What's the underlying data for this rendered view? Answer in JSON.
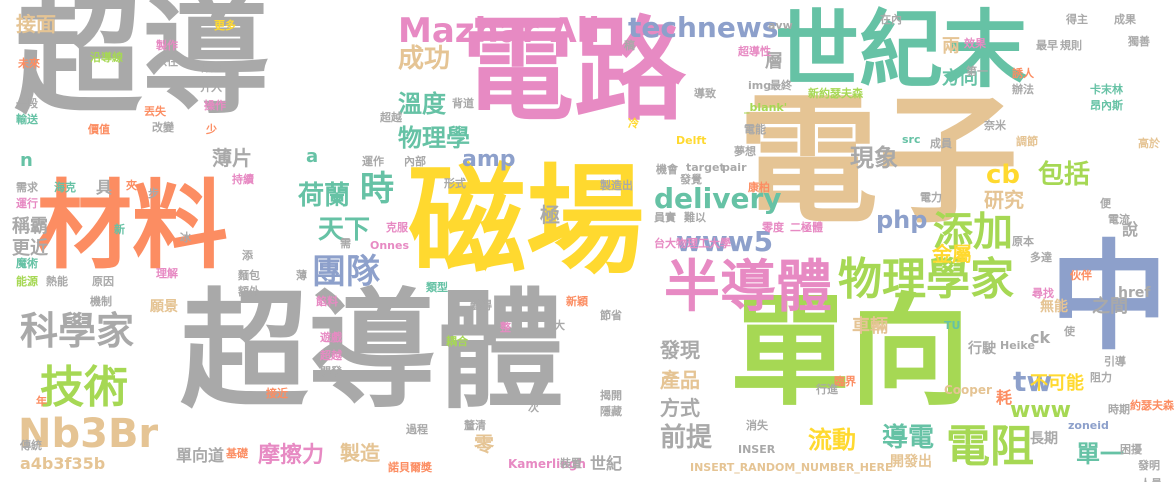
{
  "palette": {
    "gray": "#a9a9a9",
    "pink": "#e78ac3",
    "green": "#66c2a5",
    "lime": "#a6d854",
    "orange": "#fc8d62",
    "yellow": "#ffd92f",
    "tan": "#e5c494",
    "blue": "#8da0cb"
  },
  "words": [
    {
      "text": "超導",
      "color": "gray"
    },
    {
      "text": "電路",
      "color": "pink"
    },
    {
      "text": "世紀末",
      "color": "green"
    },
    {
      "text": "電子",
      "color": "tan"
    },
    {
      "text": "材料",
      "color": "orange"
    },
    {
      "text": "磁場",
      "color": "yellow"
    },
    {
      "text": "超導體",
      "color": "gray"
    },
    {
      "text": "單向",
      "color": "lime"
    },
    {
      "text": "中",
      "color": "blue"
    },
    {
      "text": "半導體",
      "color": "pink"
    },
    {
      "text": "物理學家",
      "color": "lime"
    },
    {
      "text": "Mazhar Ali",
      "color": "pink"
    },
    {
      "text": "technews",
      "color": "blue"
    },
    {
      "text": "科學家",
      "color": "gray"
    },
    {
      "text": "技術",
      "color": "lime"
    },
    {
      "text": "Nb3Br",
      "color": "tan"
    },
    {
      "text": "團隊",
      "color": "blue"
    },
    {
      "text": "添加",
      "color": "lime"
    },
    {
      "text": "電阻",
      "color": "lime"
    },
    {
      "text": "時",
      "color": "green"
    },
    {
      "text": "delivery",
      "color": "green"
    },
    {
      "text": "amp",
      "color": "blue"
    },
    {
      "text": "www5",
      "color": "blue"
    },
    {
      "text": "php",
      "color": "blue"
    },
    {
      "text": "www",
      "color": "lime"
    },
    {
      "text": "天下",
      "color": "green"
    },
    {
      "text": "荷蘭",
      "color": "green"
    },
    {
      "text": "成功",
      "color": "tan"
    },
    {
      "text": "溫度",
      "color": "green"
    },
    {
      "text": "物理學",
      "color": "green"
    },
    {
      "text": "現象",
      "color": "gray"
    },
    {
      "text": "cb",
      "color": "yellow"
    },
    {
      "text": "包括",
      "color": "lime"
    },
    {
      "text": "研究",
      "color": "tan"
    },
    {
      "text": "金屬",
      "color": "yellow"
    },
    {
      "text": "tw",
      "color": "blue"
    },
    {
      "text": "導電",
      "color": "green"
    },
    {
      "text": "單一",
      "color": "green"
    },
    {
      "text": "流動",
      "color": "yellow"
    },
    {
      "text": "前提",
      "color": "gray"
    },
    {
      "text": "摩擦力",
      "color": "pink"
    },
    {
      "text": "產品",
      "color": "tan"
    },
    {
      "text": "方式",
      "color": "gray"
    },
    {
      "text": "發現",
      "color": "gray"
    },
    {
      "text": "薄片",
      "color": "gray"
    },
    {
      "text": "接面",
      "color": "tan"
    },
    {
      "text": "方向",
      "color": "green"
    },
    {
      "text": "兩",
      "color": "tan"
    },
    {
      "text": "層",
      "color": "gray"
    },
    {
      "text": "極",
      "color": "gray"
    },
    {
      "text": "製造",
      "color": "tan"
    },
    {
      "text": "零",
      "color": "tan"
    },
    {
      "text": "世紀",
      "color": "gray"
    },
    {
      "text": "a4b3f35b",
      "color": "tan"
    },
    {
      "text": "單向道",
      "color": "gray"
    },
    {
      "text": "車輛",
      "color": "tan"
    },
    {
      "text": "不可能",
      "color": "yellow"
    },
    {
      "text": "之間",
      "color": "gray"
    },
    {
      "text": "ck",
      "color": "gray"
    },
    {
      "text": "長期",
      "color": "gray"
    },
    {
      "text": "開發出",
      "color": "tan"
    },
    {
      "text": "說",
      "color": "gray"
    },
    {
      "text": "稱霸",
      "color": "gray"
    },
    {
      "text": "更近",
      "color": "gray"
    },
    {
      "text": "願景",
      "color": "tan"
    },
    {
      "text": "具",
      "color": "gray"
    },
    {
      "text": "href",
      "color": "gray"
    },
    {
      "text": "無能",
      "color": "tan"
    },
    {
      "text": "行駛",
      "color": "gray"
    },
    {
      "text": "耗",
      "color": "orange"
    },
    {
      "text": "Kamerlingh",
      "color": "pink"
    },
    {
      "text": "INSERT_RANDOM_NUMBER_HERE",
      "color": "tan"
    },
    {
      "text": "諾貝爾獎",
      "color": "orange"
    },
    {
      "text": "Cooper",
      "color": "tan"
    },
    {
      "text": "Heike",
      "color": "gray"
    },
    {
      "text": "Onnes",
      "color": "pink"
    },
    {
      "text": "Delft",
      "color": "yellow"
    },
    {
      "text": "台大物理工大學",
      "color": "pink"
    },
    {
      "text": "新約瑟夫森",
      "color": "lime"
    },
    {
      "text": "超導性",
      "color": "pink"
    },
    {
      "text": "約瑟夫森",
      "color": "orange"
    },
    {
      "text": "卡末林",
      "color": "green"
    },
    {
      "text": "昂內斯",
      "color": "green"
    },
    {
      "text": "zoneid",
      "color": "blue"
    },
    {
      "text": "_blank'",
      "color": "lime"
    },
    {
      "text": "target",
      "color": "gray"
    },
    {
      "text": "pair",
      "color": "gray"
    },
    {
      "text": "src",
      "color": "green"
    },
    {
      "text": "img",
      "color": "gray"
    },
    {
      "text": "avw",
      "color": "gray"
    },
    {
      "text": "TU",
      "color": "green"
    },
    {
      "text": "INSER",
      "color": "gray"
    },
    {
      "text": "n",
      "color": "green"
    },
    {
      "text": "a",
      "color": "green"
    },
    {
      "text": "沿導線",
      "color": "lime"
    },
    {
      "text": "製作",
      "color": "pink"
    },
    {
      "text": "以往",
      "color": "gray"
    },
    {
      "text": "作用",
      "color": "gray"
    },
    {
      "text": "介入",
      "color": "gray"
    },
    {
      "text": "操作",
      "color": "pink"
    },
    {
      "text": "改變",
      "color": "gray"
    },
    {
      "text": "丟失",
      "color": "orange"
    },
    {
      "text": "未來",
      "color": "orange"
    },
    {
      "text": "更多",
      "color": "yellow"
    },
    {
      "text": "一段",
      "color": "gray"
    },
    {
      "text": "輸送",
      "color": "green"
    },
    {
      "text": "價值",
      "color": "orange"
    },
    {
      "text": "少",
      "color": "orange"
    },
    {
      "text": "運作",
      "color": "gray"
    },
    {
      "text": "內部",
      "color": "gray"
    },
    {
      "text": "形式",
      "color": "gray"
    },
    {
      "text": "海克",
      "color": "green"
    },
    {
      "text": "需求",
      "color": "gray"
    },
    {
      "text": "運行",
      "color": "pink"
    },
    {
      "text": "新",
      "color": "green"
    },
    {
      "text": "冰",
      "color": "gray"
    },
    {
      "text": "魔術",
      "color": "green"
    },
    {
      "text": "能源",
      "color": "lime"
    },
    {
      "text": "熱能",
      "color": "gray"
    },
    {
      "text": "原因",
      "color": "gray"
    },
    {
      "text": "理解",
      "color": "pink"
    },
    {
      "text": "麵包",
      "color": "gray"
    },
    {
      "text": "額外",
      "color": "gray"
    },
    {
      "text": "機制",
      "color": "gray"
    },
    {
      "text": "薄",
      "color": "gray"
    },
    {
      "text": "餡料",
      "color": "pink"
    },
    {
      "text": "遊戲",
      "color": "pink"
    },
    {
      "text": "超越",
      "color": "pink"
    },
    {
      "text": "開發",
      "color": "gray"
    },
    {
      "text": "接近",
      "color": "orange"
    },
    {
      "text": "年",
      "color": "orange"
    },
    {
      "text": "次",
      "color": "gray"
    },
    {
      "text": "傳統",
      "color": "gray"
    },
    {
      "text": "基礎",
      "color": "orange"
    },
    {
      "text": "過程",
      "color": "gray"
    },
    {
      "text": "釐清",
      "color": "gray"
    },
    {
      "text": "揭開",
      "color": "gray"
    },
    {
      "text": "隱藏",
      "color": "gray"
    },
    {
      "text": "耦合",
      "color": "lime"
    },
    {
      "text": "整",
      "color": "pink"
    },
    {
      "text": "變得",
      "color": "gray"
    },
    {
      "text": "類型",
      "color": "green"
    },
    {
      "text": "新穎",
      "color": "orange"
    },
    {
      "text": "節省",
      "color": "gray"
    },
    {
      "text": "裝置",
      "color": "gray"
    },
    {
      "text": "消失",
      "color": "gray"
    },
    {
      "text": "時期",
      "color": "gray"
    },
    {
      "text": "困擾",
      "color": "gray"
    },
    {
      "text": "發明",
      "color": "gray"
    },
    {
      "text": "人員",
      "color": "gray"
    },
    {
      "text": "引導",
      "color": "gray"
    },
    {
      "text": "阻力",
      "color": "gray"
    },
    {
      "text": "臨界",
      "color": "orange"
    },
    {
      "text": "行進",
      "color": "gray"
    },
    {
      "text": "難以",
      "color": "gray"
    },
    {
      "text": "員實",
      "color": "gray"
    },
    {
      "text": "二極體",
      "color": "pink"
    },
    {
      "text": "零度",
      "color": "pink"
    },
    {
      "text": "康柏",
      "color": "orange"
    },
    {
      "text": "機會",
      "color": "gray"
    },
    {
      "text": "發覺",
      "color": "gray"
    },
    {
      "text": "製造出",
      "color": "gray"
    },
    {
      "text": "電流",
      "color": "gray"
    },
    {
      "text": "電力",
      "color": "gray"
    },
    {
      "text": "高於",
      "color": "tan"
    },
    {
      "text": "調節",
      "color": "tan"
    },
    {
      "text": "原本",
      "color": "gray"
    },
    {
      "text": "多達",
      "color": "gray"
    },
    {
      "text": "伙伴",
      "color": "orange"
    },
    {
      "text": "便",
      "color": "gray"
    },
    {
      "text": "尋找",
      "color": "pink"
    },
    {
      "text": "奈米",
      "color": "gray"
    },
    {
      "text": "成員",
      "color": "gray"
    },
    {
      "text": "夢想",
      "color": "gray"
    },
    {
      "text": "電能",
      "color": "gray"
    },
    {
      "text": "冷",
      "color": "yellow"
    },
    {
      "text": "背道",
      "color": "gray"
    },
    {
      "text": "超越",
      "color": "gray"
    },
    {
      "text": "導致",
      "color": "gray"
    },
    {
      "text": "最終",
      "color": "gray"
    },
    {
      "text": "第一",
      "color": "gray"
    },
    {
      "text": "效果",
      "color": "pink"
    },
    {
      "text": "誘人",
      "color": "orange"
    },
    {
      "text": "辦法",
      "color": "gray"
    },
    {
      "text": "得主",
      "color": "gray"
    },
    {
      "text": "獨善",
      "color": "gray"
    },
    {
      "text": "成果",
      "color": "gray"
    },
    {
      "text": "規則",
      "color": "gray"
    },
    {
      "text": "最早",
      "color": "gray"
    },
    {
      "text": "在內",
      "color": "gray"
    },
    {
      "text": "稿",
      "color": "gray"
    },
    {
      "text": "步",
      "color": "gray"
    },
    {
      "text": "夾",
      "color": "orange"
    },
    {
      "text": "持續",
      "color": "pink"
    },
    {
      "text": "需",
      "color": "gray"
    },
    {
      "text": "克服",
      "color": "pink"
    },
    {
      "text": "添",
      "color": "gray"
    },
    {
      "text": "使",
      "color": "gray"
    },
    {
      "text": "大",
      "color": "gray"
    }
  ]
}
